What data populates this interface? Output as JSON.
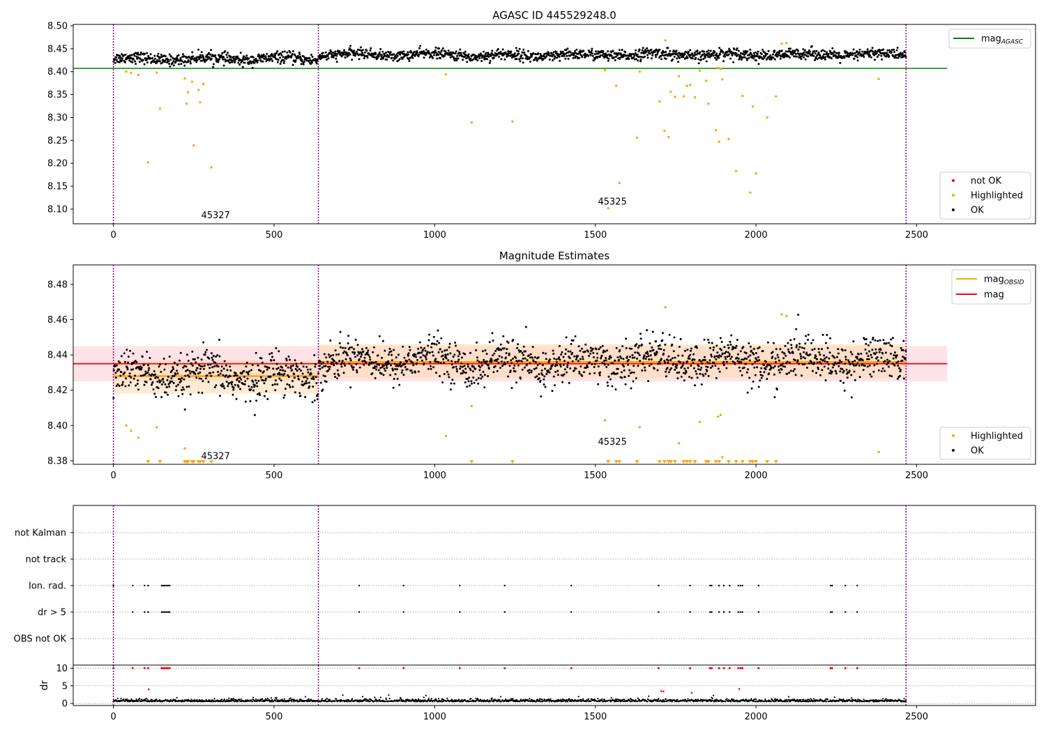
{
  "figure": {
    "panel1_title": "AGASC ID 445529248.0",
    "panel2_title": "Magnitude Estimates"
  },
  "colors": {
    "ok": "#000000",
    "highlighted": "#ffa500",
    "not_ok": "#ff0000",
    "agasc_line": "#008000",
    "mag_line": "#ff0000",
    "obsid_line": "#ffa500",
    "obsid_boundary": "#800080",
    "mag_band": "#ffc0cb",
    "obsid_band": "#ffdab0"
  },
  "chart_data": [
    {
      "type": "scatter",
      "title": "AGASC ID 445529248.0",
      "xlim": [
        -125,
        2870
      ],
      "ylim": [
        8.068,
        8.503
      ],
      "xticks": [
        0,
        500,
        1000,
        1500,
        2000,
        2500
      ],
      "yticks": [
        8.1,
        8.15,
        8.2,
        8.25,
        8.3,
        8.35,
        8.4,
        8.45,
        8.5
      ],
      "obsid_boundaries": [
        0,
        638,
        2467
      ],
      "obsid_labels": [
        {
          "text": "45327",
          "x": 318,
          "y": 8.08
        },
        {
          "text": "45325",
          "x": 1553,
          "y": 8.11
        }
      ],
      "hlines": [
        {
          "name": "mag_AGASC",
          "y": 8.407,
          "x": [
            -125,
            2595
          ]
        }
      ],
      "legend_top": {
        "entries": [
          {
            "label": "mag",
            "sub": "AGASC"
          }
        ],
        "position": "upper right"
      },
      "legend_bottom": {
        "entries": [
          "not OK",
          "Highlighted",
          "OK"
        ],
        "position": "lower right"
      },
      "series": [
        {
          "name": "OK",
          "segments": [
            {
              "x0": 0,
              "x1": 638,
              "mean": 8.428,
              "spread": 0.01
            },
            {
              "x0": 638,
              "x1": 1100,
              "mean": 8.437,
              "spread": 0.009
            },
            {
              "x0": 1100,
              "x1": 1500,
              "mean": 8.435,
              "spread": 0.01
            },
            {
              "x0": 1500,
              "x1": 2467,
              "mean": 8.437,
              "spread": 0.01
            }
          ]
        },
        {
          "name": "Highlighted",
          "points": [
            [
              40,
              8.4
            ],
            [
              55,
              8.397
            ],
            [
              78,
              8.393
            ],
            [
              108,
              8.202
            ],
            [
              135,
              8.398
            ],
            [
              145,
              8.319
            ],
            [
              222,
              8.385
            ],
            [
              228,
              8.33
            ],
            [
              232,
              8.355
            ],
            [
              245,
              8.378
            ],
            [
              250,
              8.239
            ],
            [
              265,
              8.36
            ],
            [
              270,
              8.333
            ],
            [
              280,
              8.373
            ],
            [
              305,
              8.191
            ],
            [
              1035,
              8.394
            ],
            [
              1115,
              8.289
            ],
            [
              1242,
              8.291
            ],
            [
              1530,
              8.403
            ],
            [
              1540,
              8.102
            ],
            [
              1565,
              8.369
            ],
            [
              1575,
              8.157
            ],
            [
              1630,
              8.256
            ],
            [
              1638,
              8.4
            ],
            [
              1700,
              8.335
            ],
            [
              1715,
              8.271
            ],
            [
              1718,
              8.468
            ],
            [
              1728,
              8.257
            ],
            [
              1735,
              8.356
            ],
            [
              1748,
              8.345
            ],
            [
              1760,
              8.39
            ],
            [
              1775,
              8.346
            ],
            [
              1785,
              8.369
            ],
            [
              1795,
              8.371
            ],
            [
              1810,
              8.344
            ],
            [
              1825,
              8.402
            ],
            [
              1845,
              8.38
            ],
            [
              1852,
              8.33
            ],
            [
              1875,
              8.272
            ],
            [
              1882,
              8.408
            ],
            [
              1885,
              8.247
            ],
            [
              1890,
              8.406
            ],
            [
              1895,
              8.383
            ],
            [
              1915,
              8.253
            ],
            [
              1938,
              8.183
            ],
            [
              1958,
              8.347
            ],
            [
              1982,
              8.136
            ],
            [
              1990,
              8.324
            ],
            [
              2000,
              8.178
            ],
            [
              2035,
              8.3
            ],
            [
              2062,
              8.346
            ],
            [
              2080,
              8.461
            ],
            [
              2095,
              8.462
            ],
            [
              2382,
              8.384
            ]
          ]
        }
      ]
    },
    {
      "type": "scatter",
      "title": "Magnitude Estimates",
      "xlim": [
        -125,
        2870
      ],
      "ylim": [
        8.378,
        8.491
      ],
      "xticks": [
        0,
        500,
        1000,
        1500,
        2000,
        2500
      ],
      "yticks": [
        8.38,
        8.4,
        8.42,
        8.44,
        8.46,
        8.48
      ],
      "obsid_boundaries": [
        0,
        638,
        2467
      ],
      "obsid_labels": [
        {
          "text": "45327",
          "x": 318,
          "y": 8.381
        },
        {
          "text": "45325",
          "x": 1553,
          "y": 8.389
        }
      ],
      "mag": {
        "value": 8.435,
        "band": [
          8.425,
          8.445
        ],
        "x": [
          -125,
          2595
        ]
      },
      "mag_obsid": [
        {
          "x0": 0,
          "x1": 638,
          "value": 8.428,
          "band": [
            8.418,
            8.437
          ]
        },
        {
          "x0": 638,
          "x1": 2467,
          "value": 8.436,
          "band": [
            8.427,
            8.446
          ]
        }
      ],
      "legend_top": {
        "entries": [
          {
            "label": "mag",
            "sub": "OBSID"
          },
          {
            "label": "mag",
            "sub": ""
          }
        ],
        "position": "upper right"
      },
      "legend_bottom": {
        "entries": [
          "Highlighted",
          "OK"
        ],
        "position": "lower right"
      },
      "series": [
        {
          "name": "OK",
          "segments": [
            {
              "x0": 0,
              "x1": 638,
              "mean": 8.428,
              "spread": 0.01
            },
            {
              "x0": 638,
              "x1": 1100,
              "mean": 8.437,
              "spread": 0.009
            },
            {
              "x0": 1100,
              "x1": 1500,
              "mean": 8.435,
              "spread": 0.01
            },
            {
              "x0": 1500,
              "x1": 2467,
              "mean": 8.437,
              "spread": 0.01
            }
          ]
        },
        {
          "name": "Highlighted",
          "points": [
            [
              40,
              8.4
            ],
            [
              55,
              8.397
            ],
            [
              78,
              8.393
            ],
            [
              135,
              8.399
            ],
            [
              222,
              8.387
            ],
            [
              1035,
              8.394
            ],
            [
              1115,
              8.411
            ],
            [
              1530,
              8.403
            ],
            [
              1638,
              8.399
            ],
            [
              1718,
              8.467
            ],
            [
              1760,
              8.39
            ],
            [
              1825,
              8.402
            ],
            [
              1882,
              8.405
            ],
            [
              1890,
              8.406
            ],
            [
              1895,
              8.382
            ],
            [
              2080,
              8.463
            ],
            [
              2095,
              8.462
            ],
            [
              2382,
              8.385
            ]
          ]
        },
        {
          "name": "Highlighted (below axis)",
          "x": [
            108,
            145,
            222,
            228,
            232,
            245,
            250,
            265,
            270,
            280,
            305,
            1115,
            1242,
            1540,
            1565,
            1575,
            1630,
            1700,
            1715,
            1728,
            1735,
            1748,
            1775,
            1785,
            1795,
            1810,
            1845,
            1852,
            1875,
            1885,
            1915,
            1938,
            1958,
            1982,
            1990,
            2000,
            2035,
            2062
          ]
        }
      ]
    },
    {
      "type": "scatter",
      "xlim": [
        -125,
        2870
      ],
      "xticks": [
        0,
        500,
        1000,
        1500,
        2000,
        2500
      ],
      "obsid_boundaries": [
        0,
        638,
        2467
      ],
      "flag_rows": [
        "not Kalman",
        "not track",
        "Ion. rad.",
        "dr > 5",
        "OBS not OK"
      ],
      "flagged_x": [
        0,
        60,
        97,
        108,
        150,
        155,
        160,
        165,
        170,
        175,
        765,
        903,
        1078,
        1218,
        1425,
        1697,
        1795,
        1857,
        1862,
        1885,
        1900,
        1918,
        1945,
        1952,
        1958,
        2008,
        2232,
        2237,
        2278,
        2315
      ],
      "flagged_rows": [
        "Ion. rad.",
        "dr > 5"
      ]
    },
    {
      "type": "scatter",
      "ylabel": "dr",
      "xlim": [
        -125,
        2870
      ],
      "ylim": [
        -0.6,
        10.9
      ],
      "xticks": [
        0,
        500,
        1000,
        1500,
        2000,
        2500
      ],
      "yticks": [
        0,
        5,
        10
      ],
      "obsid_boundaries": [
        0,
        638,
        2467
      ],
      "series": [
        {
          "name": "OK",
          "baseline": 0.5,
          "x_range": [
            0,
            2467
          ]
        },
        {
          "name": "not OK (dr > 5, clipped)",
          "y": 10,
          "x": [
            0,
            60,
            97,
            108,
            150,
            155,
            160,
            165,
            170,
            175,
            765,
            903,
            1078,
            1218,
            1425,
            1697,
            1795,
            1857,
            1862,
            1885,
            1900,
            1918,
            1945,
            1952,
            1958,
            2008,
            2232,
            2237,
            2278,
            2315
          ]
        },
        {
          "name": "not OK",
          "points": [
            [
              110,
              4.0
            ],
            [
              1705,
              3.5
            ],
            [
              1712,
              3.4
            ],
            [
              1948,
              4.1
            ],
            [
              1800,
              3.0
            ]
          ]
        }
      ]
    }
  ]
}
